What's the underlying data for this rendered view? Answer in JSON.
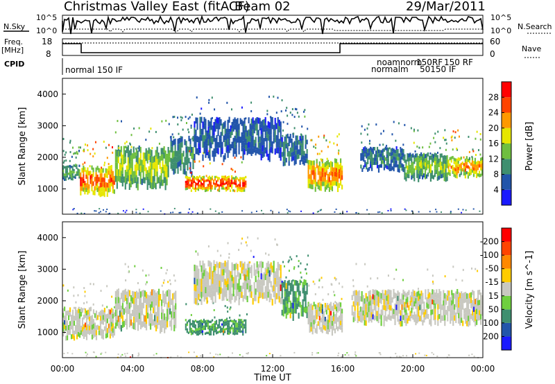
{
  "header": {
    "title": "Christmas Valley East (fitACF)",
    "beam": "Beam 02",
    "date": "29/Mar/2011"
  },
  "status_panels": {
    "nsky_label": "N.Sky",
    "nsearch_label": "N.Search",
    "freq_label_1": "Freq.",
    "freq_label_2": "[MHz]",
    "nave_label": "Nave",
    "cpid_label": "CPID",
    "nsky_ticks": [
      "10^5",
      "10^0"
    ],
    "nsearch_ticks": [
      "10^5",
      "10^0"
    ],
    "freq_ticks": [
      "18",
      "8"
    ],
    "nave_ticks": [
      "60",
      "0"
    ],
    "cpid_texts": [
      "normal 150 IF",
      "noamnorm",
      "normalm",
      "150RF",
      "50150 IF",
      "150 RF"
    ]
  },
  "x_axis": {
    "label": "Time UT",
    "ticks": [
      "00:00",
      "04:00",
      "08:00",
      "12:00",
      "16:00",
      "20:00",
      "00:00"
    ]
  },
  "chart_data": [
    {
      "type": "heatmap",
      "title": "",
      "xlabel": "Time UT",
      "ylabel": "Slant Range [km]",
      "x_ticks": [
        "00:00",
        "04:00",
        "08:00",
        "12:00",
        "16:00",
        "20:00",
        "00:00"
      ],
      "y_ticks": [
        1000,
        2000,
        3000,
        4000
      ],
      "ylim": [
        200,
        4500
      ],
      "colorbar": {
        "label": "Power [dB]",
        "ticks": [
          "4",
          "8",
          "12",
          "16",
          "20",
          "24",
          "28"
        ],
        "colors": [
          "#1a1aff",
          "#2255aa",
          "#3f8f6f",
          "#6fbf3f",
          "#e6e600",
          "#ff9900",
          "#ff4400",
          "#ff0000"
        ]
      },
      "echo_bands": [
        {
          "t0": 0.0,
          "t1": 1.0,
          "r0": 1300,
          "r1": 1750,
          "level": 12
        },
        {
          "t0": 1.0,
          "t1": 3.0,
          "r0": 850,
          "r1": 1700,
          "level": 26
        },
        {
          "t0": 3.0,
          "t1": 6.0,
          "r0": 1100,
          "r1": 2300,
          "level": 16
        },
        {
          "t0": 6.0,
          "t1": 7.5,
          "r0": 1500,
          "r1": 2600,
          "level": 10
        },
        {
          "t0": 7.0,
          "t1": 10.5,
          "r0": 950,
          "r1": 1400,
          "level": 28
        },
        {
          "t0": 7.5,
          "t1": 12.5,
          "r0": 2000,
          "r1": 3200,
          "level": 6
        },
        {
          "t0": 12.5,
          "t1": 14.0,
          "r0": 1800,
          "r1": 2700,
          "level": 8
        },
        {
          "t0": 14.0,
          "t1": 16.0,
          "r0": 1000,
          "r1": 1900,
          "level": 24
        },
        {
          "t0": 17.0,
          "t1": 19.5,
          "r0": 1600,
          "r1": 2300,
          "level": 8
        },
        {
          "t0": 19.5,
          "t1": 22.0,
          "r0": 1300,
          "r1": 2100,
          "level": 14
        },
        {
          "t0": 22.0,
          "t1": 24.0,
          "r0": 1400,
          "r1": 2000,
          "level": 22
        }
      ]
    },
    {
      "type": "heatmap",
      "title": "",
      "xlabel": "Time UT",
      "ylabel": "Slant Range [km]",
      "x_ticks": [
        "00:00",
        "04:00",
        "08:00",
        "12:00",
        "16:00",
        "20:00",
        "00:00"
      ],
      "y_ticks": [
        1000,
        2000,
        3000,
        4000
      ],
      "ylim": [
        200,
        4500
      ],
      "colorbar": {
        "label": "Velocity [m s^-1]",
        "ticks": [
          "200",
          "100",
          "50",
          "15",
          "-15",
          "-50",
          "-100",
          "-200"
        ],
        "colors": [
          "#1a1aff",
          "#2255aa",
          "#3f8f6f",
          "#6fcf3f",
          "#c8c8c0",
          "#ffcc00",
          "#ff8800",
          "#ff4400",
          "#ff0000"
        ]
      },
      "echo_bands": [
        {
          "t0": 0.0,
          "t1": 3.0,
          "r0": 850,
          "r1": 1750,
          "velocity": 0
        },
        {
          "t0": 3.0,
          "t1": 6.5,
          "r0": 1100,
          "r1": 2300,
          "velocity": 0
        },
        {
          "t0": 7.0,
          "t1": 10.5,
          "r0": 950,
          "r1": 1400,
          "velocity": 40
        },
        {
          "t0": 7.5,
          "t1": 12.5,
          "r0": 2000,
          "r1": 3200,
          "velocity": 0
        },
        {
          "t0": 12.5,
          "t1": 14.0,
          "r0": 1500,
          "r1": 2600,
          "velocity": 40
        },
        {
          "t0": 14.0,
          "t1": 16.0,
          "r0": 1000,
          "r1": 1900,
          "velocity": 0
        },
        {
          "t0": 16.5,
          "t1": 24.0,
          "r0": 1300,
          "r1": 2300,
          "velocity": 0
        }
      ]
    }
  ]
}
